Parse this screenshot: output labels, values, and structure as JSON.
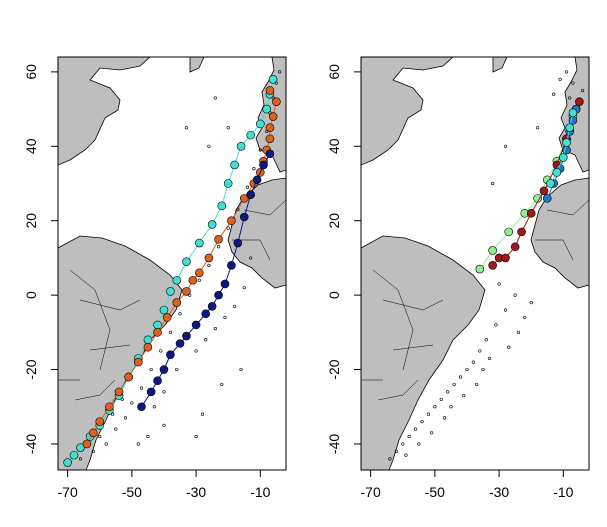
{
  "chart_data": [
    {
      "type": "scatter",
      "panel": "left",
      "title": "",
      "xlabel": "",
      "ylabel": "",
      "xlim": [
        -73,
        -2
      ],
      "ylim": [
        -47,
        64
      ],
      "xticks": [
        -70,
        -50,
        -30,
        -10
      ],
      "yticks": [
        -40,
        -20,
        0,
        20,
        40,
        60
      ],
      "xtick_labels": [
        "-70",
        "-50",
        "-30",
        "-10"
      ],
      "ytick_labels": [
        "-40",
        "-20",
        "0",
        "20",
        "40",
        "60"
      ],
      "grid": false,
      "legend": "none",
      "series": [
        {
          "color": "#40e0d0",
          "style": "points+line",
          "points": [
            [
              -70,
              -45
            ],
            [
              -68,
              -43
            ],
            [
              -66,
              -41
            ],
            [
              -63,
              -38
            ],
            [
              -60,
              -35
            ],
            [
              -57,
              -31
            ],
            [
              -54,
              -27
            ],
            [
              -51,
              -22
            ],
            [
              -48,
              -17
            ],
            [
              -45,
              -12
            ],
            [
              -42,
              -8
            ],
            [
              -40,
              -4
            ],
            [
              -38,
              1
            ],
            [
              -36,
              4
            ],
            [
              -33,
              9
            ],
            [
              -29,
              14
            ],
            [
              -25,
              19
            ],
            [
              -22,
              24
            ],
            [
              -20,
              30
            ],
            [
              -18,
              35
            ],
            [
              -16,
              40
            ],
            [
              -13,
              43
            ],
            [
              -10,
              46
            ],
            [
              -8,
              50
            ],
            [
              -7,
              54
            ],
            [
              -6,
              58
            ]
          ]
        },
        {
          "color": "#e06020",
          "style": "points+line",
          "points": [
            [
              -64,
              -40
            ],
            [
              -62,
              -37
            ],
            [
              -60,
              -34
            ],
            [
              -57,
              -30
            ],
            [
              -54,
              -26
            ],
            [
              -51,
              -22
            ],
            [
              -48,
              -18
            ],
            [
              -45,
              -14
            ],
            [
              -42,
              -10
            ],
            [
              -39,
              -6
            ],
            [
              -36,
              -2
            ],
            [
              -33,
              1
            ],
            [
              -31,
              4
            ],
            [
              -29,
              6
            ],
            [
              -26,
              10
            ],
            [
              -23,
              15
            ],
            [
              -19,
              20
            ],
            [
              -15,
              26
            ],
            [
              -12,
              30
            ],
            [
              -10,
              33
            ],
            [
              -9,
              36
            ],
            [
              -8,
              39
            ],
            [
              -7,
              42
            ],
            [
              -7,
              45
            ],
            [
              -6,
              48
            ],
            [
              -5,
              52
            ],
            [
              -7,
              55
            ]
          ]
        },
        {
          "color": "#0a1a80",
          "style": "points+line",
          "points": [
            [
              -47,
              -30
            ],
            [
              -44,
              -26
            ],
            [
              -42,
              -23
            ],
            [
              -40,
              -20
            ],
            [
              -38,
              -16
            ],
            [
              -35,
              -13
            ],
            [
              -33,
              -11
            ],
            [
              -30,
              -8
            ],
            [
              -27,
              -5
            ],
            [
              -25,
              -3
            ],
            [
              -23,
              0
            ],
            [
              -21,
              3
            ],
            [
              -19,
              8
            ],
            [
              -17,
              14
            ],
            [
              -15,
              21
            ],
            [
              -13,
              27
            ],
            [
              -11,
              31
            ],
            [
              -9,
              35
            ],
            [
              -7,
              38
            ]
          ]
        },
        {
          "color": "#000000",
          "style": "dots",
          "points": [
            [
              -62,
              -42
            ],
            [
              -58,
              -40
            ],
            [
              -55,
              -36
            ],
            [
              -52,
              -33
            ],
            [
              -50,
              -29
            ],
            [
              -47,
              -25
            ],
            [
              -44,
              -20
            ],
            [
              -41,
              -15
            ],
            [
              -38,
              -10
            ],
            [
              -35,
              -5
            ],
            [
              -32,
              0
            ],
            [
              -29,
              4
            ],
            [
              -26,
              8
            ],
            [
              -23,
              13
            ],
            [
              -20,
              18
            ],
            [
              -17,
              23
            ],
            [
              -14,
              29
            ],
            [
              -12,
              34
            ],
            [
              -10,
              39
            ],
            [
              -8,
              44
            ],
            [
              -7,
              49
            ],
            [
              -6,
              53
            ],
            [
              -5,
              57
            ],
            [
              -4,
              60
            ],
            [
              -66,
              -44
            ],
            [
              -60,
              -38
            ],
            [
              -56,
              -32
            ],
            [
              -53,
              -28
            ],
            [
              -43,
              -30
            ],
            [
              -40,
              -26
            ],
            [
              -36,
              -20
            ],
            [
              -30,
              -15
            ],
            [
              -27,
              -12
            ],
            [
              -24,
              -9
            ],
            [
              -21,
              -6
            ],
            [
              -18,
              -3
            ],
            [
              -15,
              2
            ],
            [
              -13,
              10
            ],
            [
              -26,
              40
            ],
            [
              -24,
              53
            ],
            [
              -20,
              45
            ],
            [
              -33,
              45
            ],
            [
              -30,
              -38
            ],
            [
              -28,
              -32
            ],
            [
              -22,
              -24
            ],
            [
              -16,
              -20
            ],
            [
              -48,
              -40
            ],
            [
              -45,
              -38
            ],
            [
              -40,
              -35
            ]
          ]
        }
      ]
    },
    {
      "type": "scatter",
      "panel": "right",
      "title": "",
      "xlabel": "",
      "ylabel": "",
      "xlim": [
        -73,
        -2
      ],
      "ylim": [
        -47,
        64
      ],
      "xticks": [
        -70,
        -50,
        -30,
        -10
      ],
      "yticks": [
        -40,
        -20,
        0,
        20,
        40,
        60
      ],
      "xtick_labels": [
        "-70",
        "-50",
        "-30",
        "-10"
      ],
      "ytick_labels": [
        "-40",
        "-20",
        "0",
        "20",
        "40",
        "60"
      ],
      "grid": false,
      "legend": "none",
      "series": [
        {
          "color": "#90ee90",
          "style": "points+line",
          "points": [
            [
              -36,
              7
            ],
            [
              -32,
              12
            ],
            [
              -27,
              17
            ],
            [
              -22,
              22
            ],
            [
              -18,
              26
            ],
            [
              -15,
              31
            ],
            [
              -12,
              36
            ],
            [
              -9,
              42
            ],
            [
              -7,
              48
            ]
          ]
        },
        {
          "color": "#a01818",
          "style": "points+line",
          "points": [
            [
              -32,
              8
            ],
            [
              -30,
              10
            ],
            [
              -28,
              10
            ],
            [
              -25,
              13
            ],
            [
              -23,
              17
            ],
            [
              -20,
              22
            ],
            [
              -16,
              28
            ],
            [
              -12,
              35
            ],
            [
              -9,
              42
            ],
            [
              -6,
              50
            ],
            [
              -5,
              52
            ]
          ]
        },
        {
          "color": "#1e78c8",
          "style": "points+line",
          "points": [
            [
              -15,
              26
            ],
            [
              -13,
              30
            ],
            [
              -11,
              34
            ],
            [
              -9,
              39
            ],
            [
              -8,
              44
            ],
            [
              -7,
              47
            ],
            [
              -6,
              50
            ]
          ]
        },
        {
          "color": "#40e0d0",
          "style": "points+line",
          "points": [
            [
              -14,
              30
            ],
            [
              -12,
              33
            ],
            [
              -10,
              37
            ],
            [
              -9,
              41
            ],
            [
              -8,
              45
            ],
            [
              -7,
              49
            ]
          ]
        },
        {
          "color": "#000000",
          "style": "dots",
          "points": [
            [
              -62,
              -42
            ],
            [
              -60,
              -40
            ],
            [
              -58,
              -38
            ],
            [
              -56,
              -36
            ],
            [
              -54,
              -34
            ],
            [
              -52,
              -32
            ],
            [
              -50,
              -30
            ],
            [
              -48,
              -28
            ],
            [
              -46,
              -26
            ],
            [
              -44,
              -24
            ],
            [
              -42,
              -22
            ],
            [
              -40,
              -20
            ],
            [
              -38,
              -18
            ],
            [
              -36,
              -15
            ],
            [
              -34,
              -12
            ],
            [
              -31,
              -8
            ],
            [
              -28,
              -4
            ],
            [
              -25,
              0
            ],
            [
              -22,
              -6
            ],
            [
              -20,
              -2
            ],
            [
              -30,
              3
            ],
            [
              -32,
              30
            ],
            [
              -28,
              40
            ],
            [
              -18,
              45
            ],
            [
              -13,
              54
            ],
            [
              -11,
              58
            ],
            [
              -9,
              60
            ],
            [
              -7,
              57
            ],
            [
              -8,
              53
            ],
            [
              -4,
              55
            ],
            [
              -64,
              -44
            ],
            [
              -59,
              -43
            ],
            [
              -55,
              -40
            ],
            [
              -51,
              -37
            ],
            [
              -47,
              -33
            ],
            [
              -45,
              -30
            ],
            [
              -41,
              -27
            ],
            [
              -37,
              -24
            ],
            [
              -35,
              -20
            ],
            [
              -33,
              -17
            ],
            [
              -27,
              -14
            ],
            [
              -24,
              -10
            ]
          ]
        }
      ]
    }
  ]
}
